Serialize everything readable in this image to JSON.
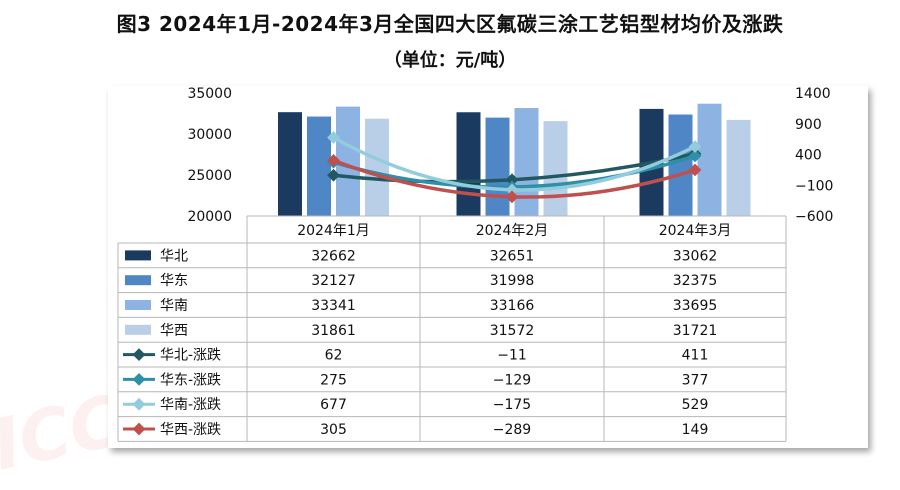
{
  "title": "图3  2024年1月-2024年3月全国四大区氟碳三涂工艺铝型材均价及涨跌",
  "subtitle": "（单位：元/吨）",
  "watermark": "ICC 慧网",
  "chart_data": {
    "type": "bar",
    "categories": [
      "2024年1月",
      "2024年2月",
      "2024年3月"
    ],
    "y_left": {
      "min": 20000,
      "max": 35000,
      "ticks": [
        20000,
        25000,
        30000,
        35000
      ]
    },
    "y_right": {
      "min": -600,
      "max": 1400,
      "ticks": [
        -600,
        -100,
        400,
        900,
        1400
      ],
      "tick_labels": [
        "−600",
        "−100",
        "400",
        "900",
        "1400"
      ]
    },
    "bar_series": [
      {
        "name": "华北",
        "color": "#1b3a5f",
        "values": [
          32662,
          32651,
          33062
        ]
      },
      {
        "name": "华东",
        "color": "#4f86c6",
        "values": [
          32127,
          31998,
          32375
        ]
      },
      {
        "name": "华南",
        "color": "#8db3e2",
        "values": [
          33341,
          33166,
          33695
        ]
      },
      {
        "name": "华西",
        "color": "#b9cfe8",
        "values": [
          31861,
          31572,
          31721
        ]
      }
    ],
    "line_series": [
      {
        "name": "华北-涨跌",
        "color": "#215862",
        "values": [
          62,
          -11,
          411
        ],
        "labels": [
          "62",
          "−11",
          "411"
        ]
      },
      {
        "name": "华东-涨跌",
        "color": "#2e8fa6",
        "values": [
          275,
          -129,
          377
        ],
        "labels": [
          "275",
          "−129",
          "377"
        ]
      },
      {
        "name": "华南-涨跌",
        "color": "#93ccdc",
        "values": [
          677,
          -175,
          529
        ],
        "labels": [
          "677",
          "−175",
          "529"
        ]
      },
      {
        "name": "华西-涨跌",
        "color": "#c0504d",
        "values": [
          305,
          -289,
          149
        ],
        "labels": [
          "305",
          "−289",
          "149"
        ]
      }
    ]
  }
}
